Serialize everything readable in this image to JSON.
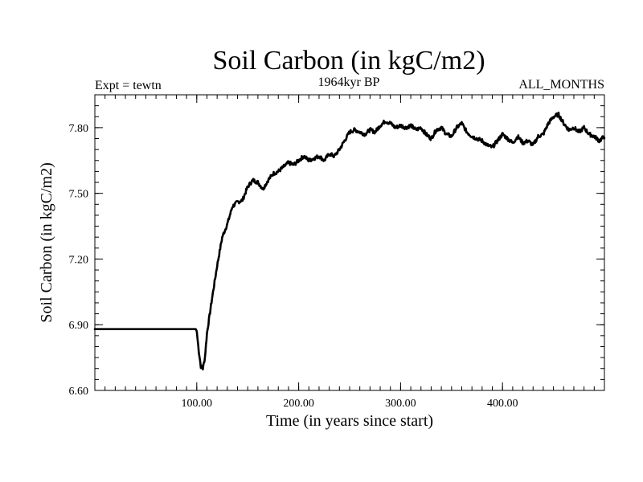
{
  "chart_data": {
    "type": "line",
    "title": "Soil Carbon (in kgC/m2)",
    "subtitle": "1964kyr BP",
    "left_note": "Expt = tewtn",
    "right_note": "ALL_MONTHS",
    "xlabel": "Time (in years since start)",
    "ylabel": "Soil Carbon (in kgC/m2)",
    "xlim": [
      0,
      500
    ],
    "ylim": [
      6.6,
      7.95
    ],
    "x_ticks": [
      100,
      200,
      300,
      400
    ],
    "x_tick_labels": [
      "100.00",
      "200.00",
      "300.00",
      "400.00"
    ],
    "y_ticks": [
      6.6,
      6.9,
      7.2,
      7.5,
      7.8
    ],
    "y_tick_labels": [
      "6.60",
      "6.90",
      "7.20",
      "7.50",
      "7.80"
    ],
    "x_minor_step": 10,
    "y_minor_step": 0.05,
    "series": [
      {
        "name": "Soil Carbon",
        "color": "#000000",
        "x": [
          0,
          99,
          100,
          102,
          104,
          106,
          108,
          110,
          115,
          120,
          125,
          130,
          135,
          140,
          145,
          150,
          155,
          160,
          165,
          170,
          175,
          180,
          185,
          190,
          195,
          200,
          205,
          210,
          215,
          220,
          225,
          230,
          235,
          240,
          245,
          250,
          255,
          260,
          265,
          270,
          275,
          280,
          285,
          290,
          295,
          300,
          305,
          310,
          315,
          320,
          325,
          330,
          335,
          340,
          345,
          350,
          355,
          360,
          365,
          370,
          375,
          380,
          385,
          390,
          395,
          400,
          405,
          410,
          415,
          420,
          425,
          430,
          435,
          440,
          445,
          450,
          455,
          460,
          465,
          470,
          475,
          480,
          485,
          490,
          495,
          500
        ],
        "y": [
          6.88,
          6.88,
          6.87,
          6.78,
          6.71,
          6.7,
          6.75,
          6.86,
          7.02,
          7.17,
          7.3,
          7.36,
          7.44,
          7.46,
          7.47,
          7.53,
          7.56,
          7.55,
          7.52,
          7.56,
          7.59,
          7.6,
          7.62,
          7.64,
          7.63,
          7.65,
          7.67,
          7.65,
          7.66,
          7.67,
          7.65,
          7.68,
          7.67,
          7.7,
          7.74,
          7.78,
          7.79,
          7.78,
          7.77,
          7.79,
          7.78,
          7.81,
          7.83,
          7.82,
          7.8,
          7.81,
          7.8,
          7.81,
          7.79,
          7.8,
          7.77,
          7.75,
          7.79,
          7.8,
          7.77,
          7.76,
          7.8,
          7.82,
          7.78,
          7.76,
          7.75,
          7.74,
          7.72,
          7.71,
          7.74,
          7.77,
          7.75,
          7.73,
          7.76,
          7.73,
          7.74,
          7.72,
          7.76,
          7.77,
          7.82,
          7.85,
          7.86,
          7.82,
          7.79,
          7.8,
          7.78,
          7.8,
          7.77,
          7.76,
          7.74,
          7.76
        ]
      }
    ]
  }
}
